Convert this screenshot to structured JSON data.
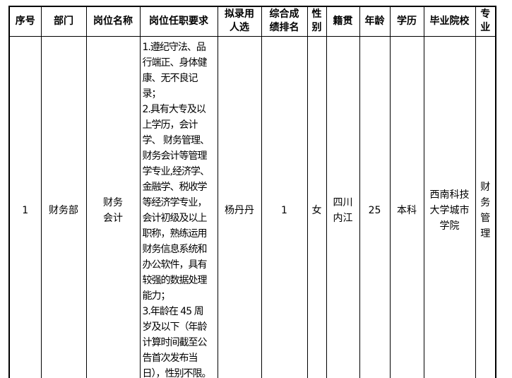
{
  "colors": {
    "border": "#000000",
    "text": "#000000",
    "background": "#ffffff"
  },
  "table": {
    "headers": {
      "seq": "序号",
      "department": "部门",
      "position": "岗位名称",
      "requirements": "岗位任职要求",
      "candidate": "拟录用\n人选",
      "rank": "综合成\n绩排名",
      "gender": "性\n别",
      "hometown": "籍贯",
      "age": "年龄",
      "education": "学历",
      "school": "毕业院校",
      "major": "专\n业"
    },
    "row": {
      "seq": "1",
      "department": "财务部",
      "position": "财务\n会计",
      "requirements": "1.遵纪守法、品\n行端正、身体健\n康、无不良记录；\n2.具有大专及以\n上学历，会计\n学、 财务管理、\n财务会计等管理\n学专业,经济学、\n金融学、税收学\n等经济学专业，\n会计初级及以上\n职称，熟练运用\n财务信息系统和\n办公软件，具有\n较强的数据处理\n能力；\n3.年龄在 45 周\n岁及以下（年龄\n计算时间截至公\n告首次发布当\n日），性别不限。",
      "candidate": "杨丹丹",
      "rank": "1",
      "gender": "女",
      "hometown": "四川\n内江",
      "age": "25",
      "education": "本科",
      "school": "西南科技\n大学城市\n学院",
      "major": "财\n务\n管\n理"
    }
  }
}
